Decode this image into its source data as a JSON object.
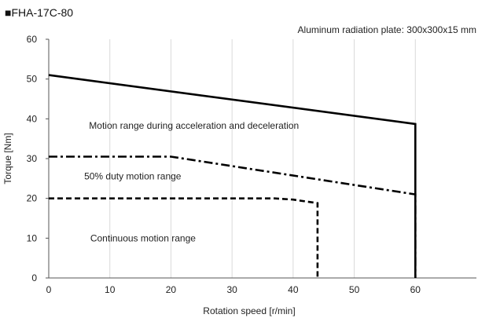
{
  "chart_data": {
    "type": "line",
    "title": "FHA-17C-80",
    "title_marker": "■",
    "subtitle": "Aluminum radiation plate: 300x300x15 mm",
    "xlabel": "Rotation speed [r/min]",
    "ylabel": "Torque [Nm]",
    "xlim": [
      0,
      70
    ],
    "ylim": [
      0,
      60
    ],
    "x_ticks": [
      "0",
      "10",
      "20",
      "30",
      "40",
      "50",
      "60"
    ],
    "y_ticks": [
      "0",
      "10",
      "20",
      "30",
      "40",
      "50",
      "60"
    ],
    "grid": "vertical",
    "legend": "none",
    "series": [
      {
        "style": "solid",
        "color": "#000000",
        "x": [
          0,
          60,
          60
        ],
        "y": [
          51,
          38.7,
          0
        ]
      },
      {
        "style": "dash-dot",
        "color": "#000000",
        "x": [
          0,
          20,
          60,
          60
        ],
        "y": [
          30.5,
          30.5,
          21,
          0
        ]
      },
      {
        "style": "dashed",
        "color": "#000000",
        "x": [
          0,
          37,
          40,
          44,
          44
        ],
        "y": [
          20,
          20,
          19.7,
          18.8,
          0
        ]
      }
    ],
    "annotations": [
      {
        "text": "Motion range during acceleration and deceleration",
        "x": 6.6,
        "y": 37.5
      },
      {
        "text": "50% duty motion range",
        "x": 5.8,
        "y": 24.8
      },
      {
        "text": "Continuous motion range",
        "x": 6.8,
        "y": 9.2
      }
    ]
  }
}
